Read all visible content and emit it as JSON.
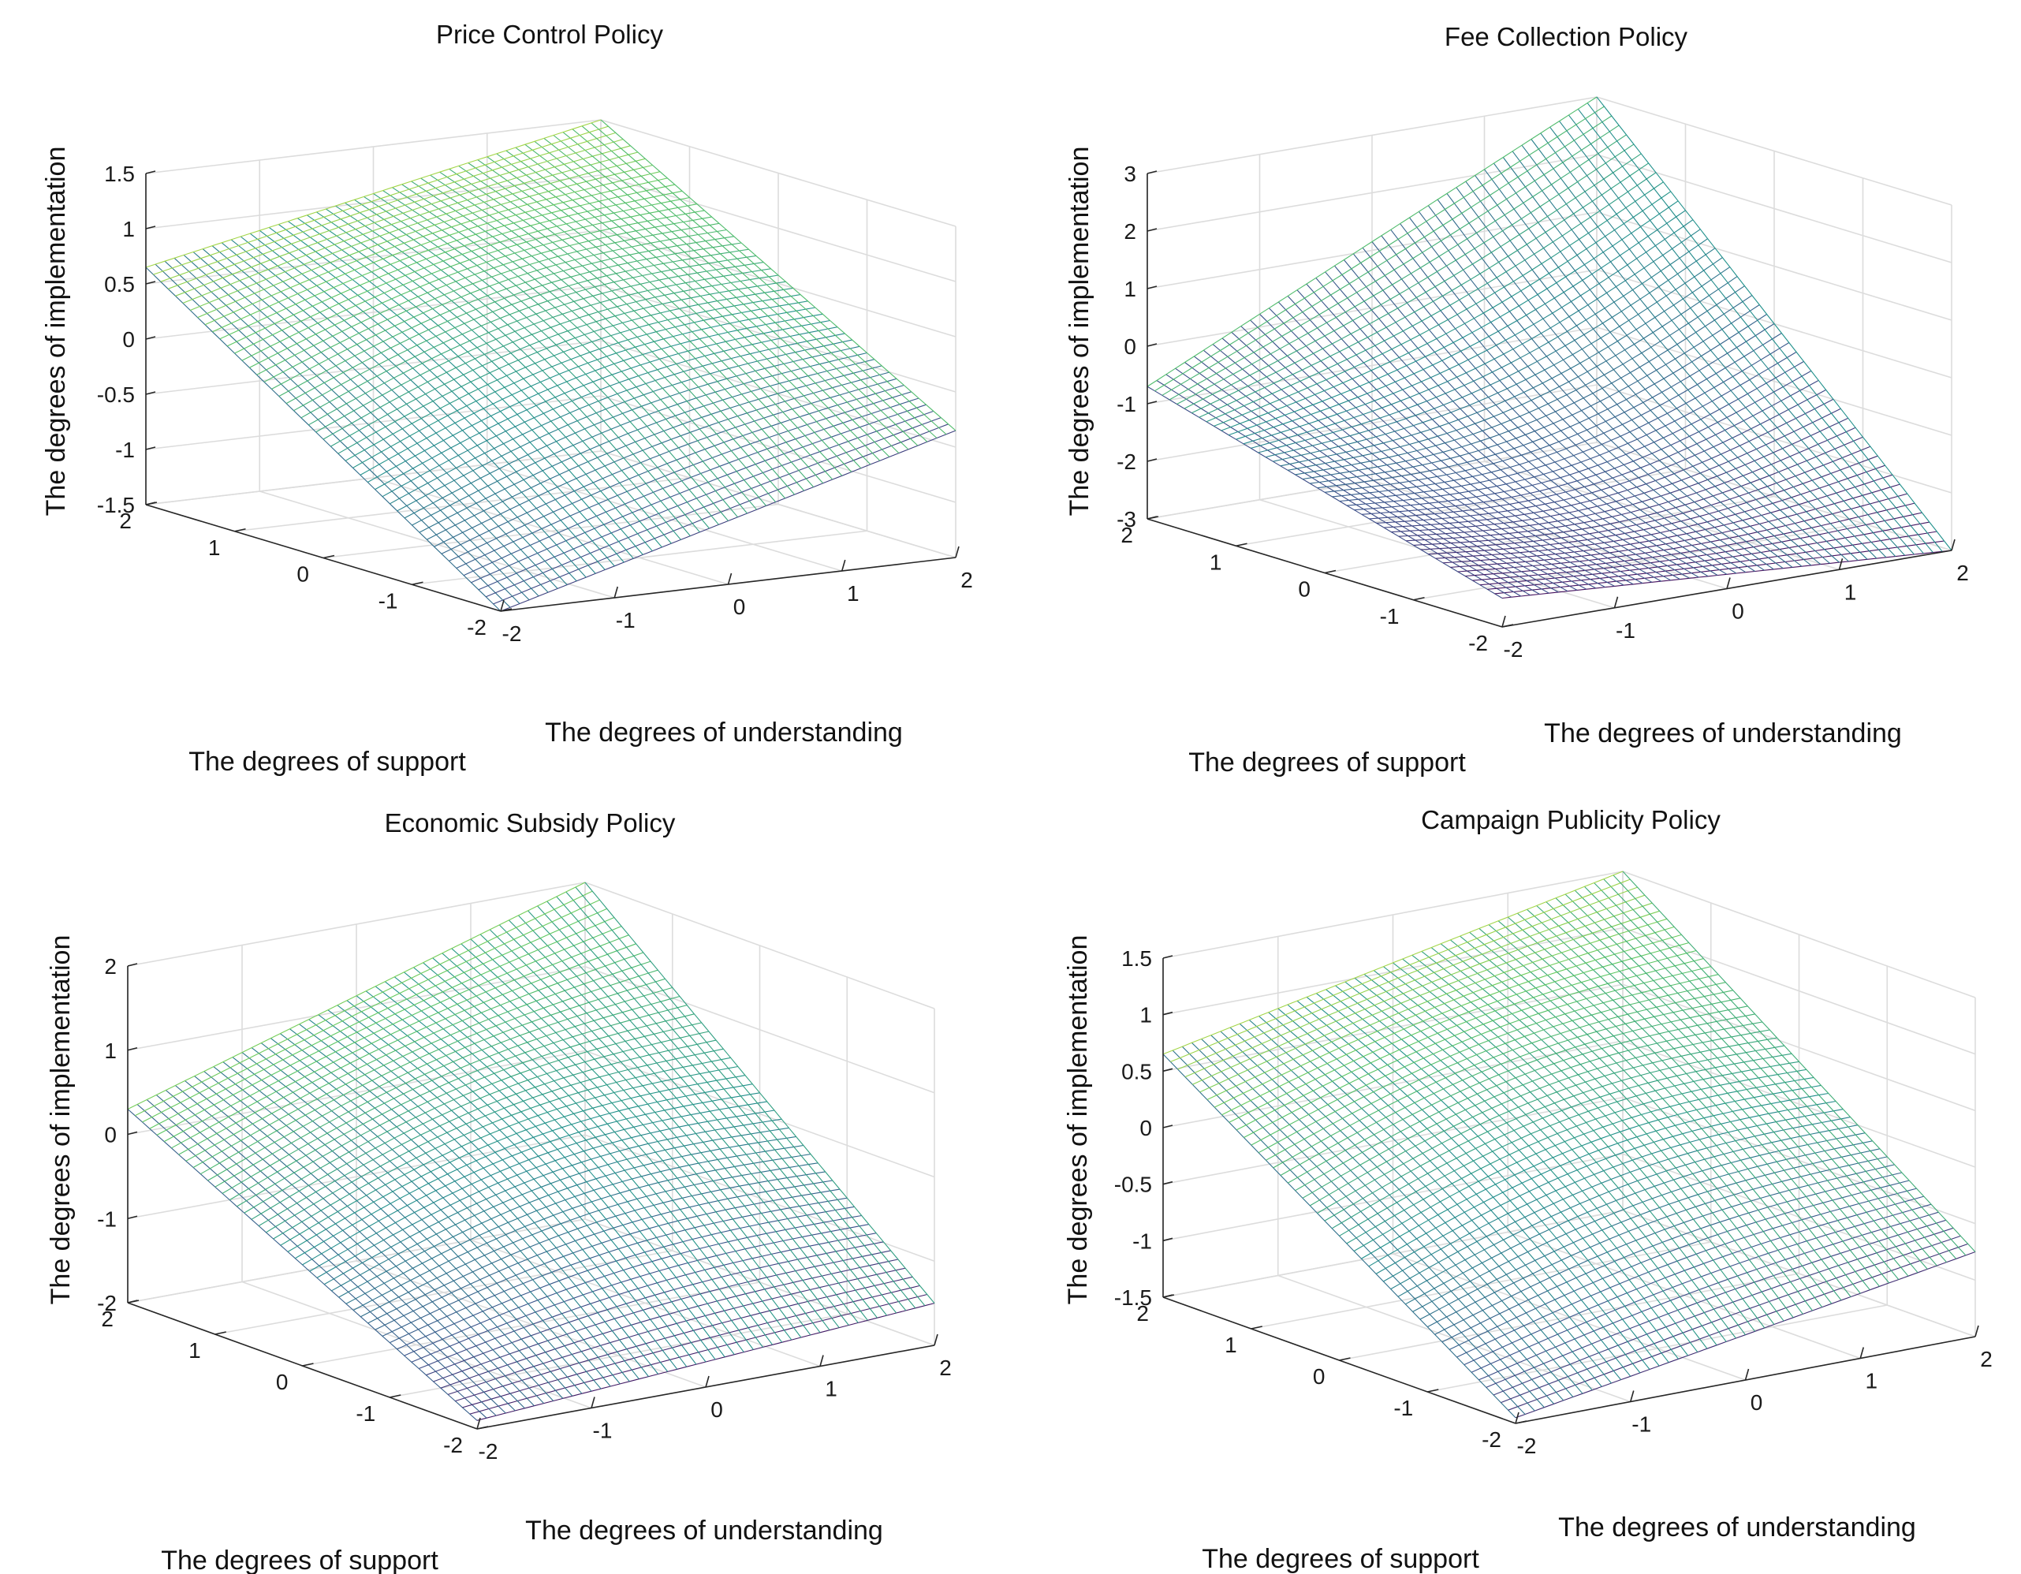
{
  "figure": {
    "layout": "2x2 grid of 3D mesh surface plots",
    "colormap": [
      "#440154",
      "#3b528b",
      "#21918c",
      "#5ec962",
      "#fde725"
    ],
    "mesh_line_colormap": "parula-like blue to yellow"
  },
  "chart_data": [
    {
      "type": "surface",
      "title": "Price Control Policy",
      "xlabel": "The degrees of understanding",
      "ylabel": "The degrees of support",
      "zlabel": "The degrees of implementation",
      "xlim": [
        -2,
        2
      ],
      "ylim": [
        -2,
        2
      ],
      "zlim": [
        -1.5,
        1.5
      ],
      "x_ticks": [
        "-2",
        "-1",
        "0",
        "1",
        "2"
      ],
      "y_ticks": [
        "-2",
        "-1",
        "0",
        "1",
        "2"
      ],
      "z_ticks": [
        "-1.5",
        "-1",
        "-0.5",
        "0",
        "0.5",
        "1",
        "1.5"
      ],
      "corner_values": {
        "x-2_y-2": -1.5,
        "x-2_y2": 0.65,
        "x2_y2": 1.5,
        "x2_y-2": -0.35
      }
    },
    {
      "type": "surface",
      "title": "Fee Collection Policy",
      "xlabel": "The degrees of understanding",
      "ylabel": "The degrees of support",
      "zlabel": "The degrees of implementation",
      "xlim": [
        -2,
        2
      ],
      "ylim": [
        -2,
        2
      ],
      "zlim": [
        -3,
        3
      ],
      "x_ticks": [
        "-2",
        "-1",
        "0",
        "1",
        "2"
      ],
      "y_ticks": [
        "-2",
        "-1",
        "0",
        "1",
        "2"
      ],
      "z_ticks": [
        "-3",
        "-2",
        "-1",
        "0",
        "1",
        "2",
        "3"
      ],
      "corner_values": {
        "x-2_y-2": -2.5,
        "x-2_y2": -0.7,
        "x2_y2": 3.0,
        "x2_y-2": -3.0
      }
    },
    {
      "type": "surface",
      "title": "Economic Subsidy Policy",
      "xlabel": "The degrees of understanding",
      "ylabel": "The degrees of support",
      "zlabel": "The degrees of implementation",
      "xlim": [
        -2,
        2
      ],
      "ylim": [
        -2,
        2
      ],
      "zlim": [
        -2,
        2
      ],
      "x_ticks": [
        "-2",
        "-1",
        "0",
        "1",
        "2"
      ],
      "y_ticks": [
        "-2",
        "-1",
        "0",
        "1",
        "2"
      ],
      "z_ticks": [
        "-2",
        "-1",
        "0",
        "1",
        "2"
      ],
      "corner_values": {
        "x-2_y-2": -1.9,
        "x-2_y2": 0.3,
        "x2_y2": 2.0,
        "x2_y-2": -1.5
      }
    },
    {
      "type": "surface",
      "title": "Campaign Publicity Policy",
      "xlabel": "The degrees of understanding",
      "ylabel": "The degrees of support",
      "zlabel": "The degrees of implementation",
      "xlim": [
        -2,
        2
      ],
      "ylim": [
        -2,
        2
      ],
      "zlim": [
        -1.5,
        1.5
      ],
      "x_ticks": [
        "-2",
        "-1",
        "0",
        "1",
        "2"
      ],
      "y_ticks": [
        "-2",
        "-1",
        "0",
        "1",
        "2"
      ],
      "z_ticks": [
        "-1.5",
        "-1",
        "-0.5",
        "0",
        "0.5",
        "1",
        "1.5"
      ],
      "corner_values": {
        "x-2_y-2": -1.45,
        "x-2_y2": 0.65,
        "x2_y2": 1.5,
        "x2_y-2": -0.75
      }
    }
  ]
}
